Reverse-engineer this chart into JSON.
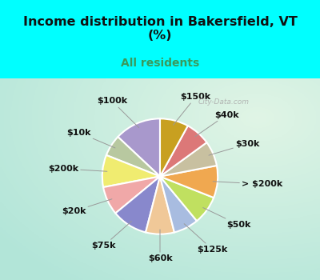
{
  "title": "Income distribution in Bakersfield, VT\n(%)",
  "subtitle": "All residents",
  "title_color": "#111111",
  "subtitle_color": "#3a9a5c",
  "bg_cyan": "#00ffff",
  "labels": [
    "$100k",
    "$10k",
    "$200k",
    "$20k",
    "$75k",
    "$60k",
    "$125k",
    "$50k",
    "> $200k",
    "$30k",
    "$40k",
    "$150k"
  ],
  "values": [
    13,
    6,
    9,
    8,
    10,
    8,
    7,
    8,
    9,
    7,
    7,
    8
  ],
  "colors": [
    "#a898cc",
    "#b8c8a0",
    "#f0ec70",
    "#f0a8a8",
    "#8888cc",
    "#f0c898",
    "#a8bce0",
    "#c0e060",
    "#f0a850",
    "#c8c0a0",
    "#dc7878",
    "#c8a020"
  ],
  "wedge_lw": 1.5,
  "wedge_edge_color": "#ffffff",
  "label_fontsize": 8.0,
  "startangle": 90,
  "watermark": "City-Data.com"
}
